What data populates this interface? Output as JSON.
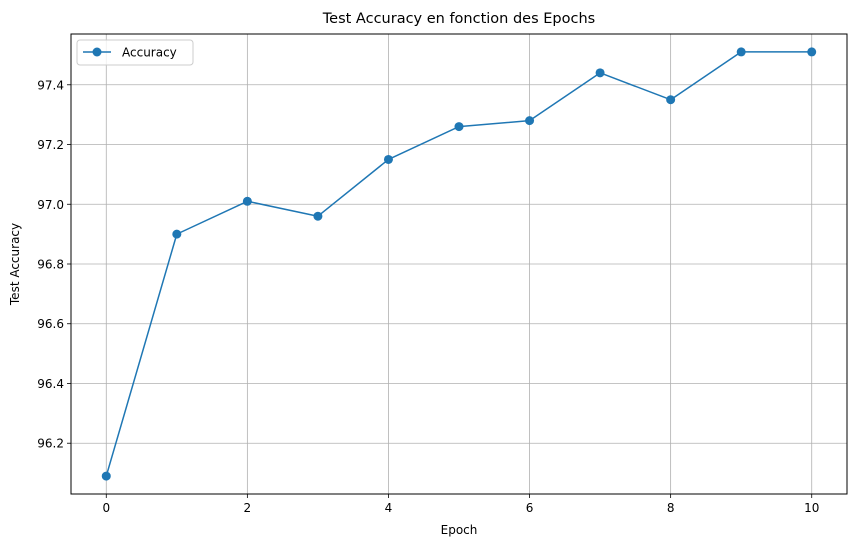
{
  "chart_data": {
    "type": "line",
    "title": "Test Accuracy en fonction des Epochs",
    "xlabel": "Epoch",
    "ylabel": "Test Accuracy",
    "xlim": [
      -0.5,
      10.5
    ],
    "ylim": [
      96.03,
      97.57
    ],
    "x_ticks": [
      0,
      2,
      4,
      6,
      8,
      10
    ],
    "y_ticks": [
      96.2,
      96.4,
      96.6,
      96.8,
      97.0,
      97.2,
      97.4
    ],
    "grid": true,
    "legend_position": "upper-left",
    "series": [
      {
        "name": "Accuracy",
        "color": "#1f77b4",
        "marker": "circle",
        "x": [
          0,
          1,
          2,
          3,
          4,
          5,
          6,
          7,
          8,
          9,
          10
        ],
        "values": [
          96.09,
          96.9,
          97.01,
          96.96,
          97.15,
          97.26,
          97.28,
          97.44,
          97.35,
          97.51,
          97.51
        ]
      }
    ]
  }
}
